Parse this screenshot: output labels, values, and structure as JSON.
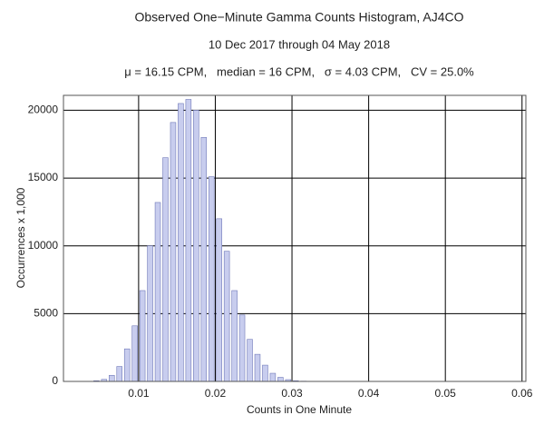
{
  "chart_data": {
    "type": "histogram",
    "title": "Observed One−Minute Gamma Counts Histogram, AJ4CO",
    "subtitle": "10 Dec 2017 through 04 May 2018",
    "stats": "μ = 16.15 CPM,   median = 16 CPM,   σ = 4.03 CPM,   CV = 25.0%",
    "x_label": "Counts in One Minute",
    "y_label": "Occurrences x 1,000",
    "bins": [
      0.004,
      0.005,
      0.006,
      0.007,
      0.008,
      0.009,
      0.01,
      0.011,
      0.012,
      0.013,
      0.014,
      0.015,
      0.016,
      0.017,
      0.018,
      0.019,
      0.02,
      0.021,
      0.022,
      0.023,
      0.024,
      0.025,
      0.026,
      0.027,
      0.028,
      0.029,
      0.03,
      0.031,
      0.032
    ],
    "values": [
      50,
      150,
      450,
      1100,
      2400,
      4100,
      6700,
      10000,
      13200,
      16500,
      19100,
      20500,
      20800,
      20000,
      18000,
      15100,
      12000,
      9600,
      6700,
      4900,
      3100,
      2000,
      1200,
      600,
      300,
      130,
      50,
      20
    ],
    "color": "#c8cdee",
    "edge_color": "#6f78b8",
    "xlim": [
      0.0002,
      0.0605
    ],
    "xticks": [
      0.01,
      0.02,
      0.03,
      0.04,
      0.05,
      0.06
    ],
    "ylim": [
      0,
      21100
    ],
    "yticks": [
      0,
      5000,
      10000,
      15000,
      20000
    ],
    "grid": true
  }
}
